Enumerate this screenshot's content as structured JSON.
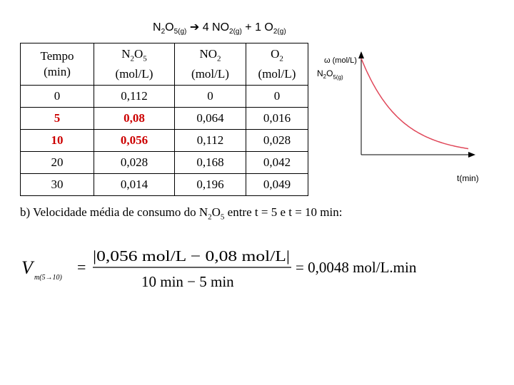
{
  "equation": {
    "reactant_formula": "N",
    "reactant_n_sub": "2",
    "reactant_o": "O",
    "reactant_sub": "5(g)",
    "arrow": "➔",
    "product1_coef": "4 NO",
    "product1_sub": "2(g)",
    "plus": "+",
    "product2_coef": "1 O",
    "product2_sub": "2(g)"
  },
  "table": {
    "headers": [
      {
        "line1": "Tempo",
        "line2": "(min)"
      },
      {
        "line1_a": "N",
        "line1_sub_a": "2",
        "line1_b": "O",
        "line1_sub_b": "5",
        "line2": "(mol/L)"
      },
      {
        "line1_a": "NO",
        "line1_sub_a": "2",
        "line2": "(mol/L)"
      },
      {
        "line1_a": "O",
        "line1_sub_a": "2",
        "line2": "(mol/L)"
      }
    ],
    "rows": [
      {
        "cells": [
          "0",
          "0,112",
          "0",
          "0"
        ],
        "highlight": false
      },
      {
        "cells": [
          "5",
          "0,08",
          "0,064",
          "0,016"
        ],
        "highlight": true
      },
      {
        "cells": [
          "10",
          "0,056",
          "0,112",
          "0,028"
        ],
        "highlight": true
      },
      {
        "cells": [
          "20",
          "0,028",
          "0,168",
          "0,042"
        ],
        "highlight": false
      },
      {
        "cells": [
          "30",
          "0,014",
          "0,196",
          "0,049"
        ],
        "highlight": false
      }
    ],
    "highlight_color": "#cc0000"
  },
  "chart": {
    "ylabel": "ω (mol/L)",
    "series_label_a": "N",
    "series_label_sub_a": "2",
    "series_label_b": "O",
    "series_label_sub_b": "5(g)",
    "xlabel": "t(min)",
    "curve_color": "#e0485a"
  },
  "chart_data": {
    "type": "line",
    "title": "",
    "xlabel": "t(min)",
    "ylabel": "ω (mol/L)",
    "series": [
      {
        "name": "N2O5(g)",
        "x": [
          0,
          5,
          10,
          20,
          30
        ],
        "values": [
          0.112,
          0.08,
          0.056,
          0.028,
          0.014
        ]
      }
    ],
    "grid": false
  },
  "question": {
    "text_a": "b) Velocidade média de consumo do N",
    "sub_a": "2",
    "text_b": "O",
    "sub_b": "5",
    "text_c": " entre t = 5 e t = 10 min:"
  },
  "formula": {
    "lhs": "V",
    "lhs_sub": "m(5→10)",
    "equals": "=",
    "numerator": "|0,056 mol/L − 0,08 mol/L|",
    "denominator": "10 min − 5 min",
    "result": "= 0,0048 mol/L.min"
  }
}
